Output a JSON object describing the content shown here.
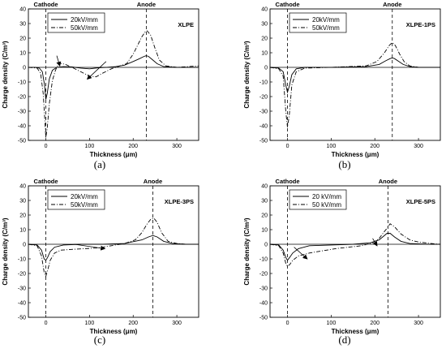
{
  "chart_data": [
    {
      "type": "line",
      "title": "XLPE",
      "subplot_label": "(a)",
      "xlabel": "Thickness (μm)",
      "ylabel": "Charge density (C/m³)",
      "xlim": [
        -40,
        350
      ],
      "ylim": [
        -50,
        40
      ],
      "xticks": [
        0,
        100,
        200,
        300
      ],
      "yticks": [
        -50,
        -40,
        -30,
        -20,
        -10,
        0,
        10,
        20,
        30,
        40
      ],
      "electrodes": [
        {
          "label": "Cathode",
          "x": 0
        },
        {
          "label": "Anode",
          "x": 230
        }
      ],
      "legend_position": "top-left",
      "arrows": [
        {
          "from": [
            25,
            8
          ],
          "to": [
            32,
            1
          ]
        },
        {
          "from": [
            138,
            4
          ],
          "to": [
            95,
            -8
          ]
        }
      ],
      "series": [
        {
          "name": "20kV/mm",
          "style": "solid",
          "x": [
            -40,
            -25,
            -15,
            -8,
            -3,
            0,
            3,
            8,
            15,
            25,
            40,
            60,
            80,
            100,
            120,
            140,
            160,
            180,
            200,
            215,
            225,
            230,
            235,
            245,
            255,
            270,
            300,
            350
          ],
          "y": [
            0,
            0,
            -0.5,
            -3,
            -12,
            -22,
            -18,
            -8,
            -2,
            0,
            0.5,
            0.3,
            -0.5,
            -1,
            -0.3,
            0,
            0.5,
            1.5,
            4,
            6,
            7.5,
            8,
            7.5,
            5,
            2.5,
            0.5,
            0,
            0
          ]
        },
        {
          "name": "50kV/mm",
          "style": "dashdot",
          "x": [
            -40,
            -20,
            -12,
            -6,
            -2,
            0,
            3,
            8,
            15,
            22,
            30,
            45,
            60,
            80,
            100,
            115,
            130,
            150,
            170,
            185,
            200,
            210,
            220,
            228,
            232,
            240,
            250,
            260,
            275,
            300,
            350
          ],
          "y": [
            0,
            -0.5,
            -4,
            -18,
            -38,
            -48,
            -42,
            -25,
            -9,
            -2,
            3,
            2,
            0,
            -3,
            -6,
            -6.5,
            -4,
            -1,
            1,
            2.5,
            9,
            15,
            21,
            24.5,
            25,
            22,
            13,
            5,
            1,
            0,
            1
          ]
        }
      ]
    },
    {
      "type": "line",
      "title": "XLPE-1PS",
      "subplot_label": "(b)",
      "xlabel": "Thickness (μm)",
      "ylabel": "Charge density (C/m³)",
      "xlim": [
        -40,
        350
      ],
      "ylim": [
        -50,
        40
      ],
      "xticks": [
        0,
        100,
        200,
        300
      ],
      "yticks": [
        -50,
        -40,
        -30,
        -20,
        -10,
        0,
        10,
        20,
        30,
        40
      ],
      "electrodes": [
        {
          "label": "Cathode",
          "x": 0
        },
        {
          "label": "Anode",
          "x": 240
        }
      ],
      "legend_position": "top-left",
      "arrows": [],
      "series": [
        {
          "name": "20kV/mm",
          "style": "solid",
          "x": [
            -40,
            -20,
            -10,
            -4,
            0,
            4,
            10,
            20,
            40,
            100,
            180,
            210,
            225,
            235,
            240,
            245,
            255,
            265,
            280,
            300,
            350
          ],
          "y": [
            0,
            -0.5,
            -3,
            -12,
            -17,
            -13,
            -5,
            -1,
            0,
            0,
            0.5,
            2,
            4.5,
            6,
            6.5,
            6,
            4,
            2,
            0.5,
            0,
            0
          ]
        },
        {
          "name": "50kV/mm",
          "style": "dashdot",
          "x": [
            -40,
            -20,
            -10,
            -4,
            0,
            4,
            10,
            20,
            40,
            100,
            180,
            205,
            222,
            233,
            240,
            247,
            257,
            267,
            280,
            300,
            350
          ],
          "y": [
            0,
            -1,
            -6,
            -30,
            -41,
            -33,
            -12,
            -3,
            -0.5,
            0,
            1,
            4,
            10,
            15,
            17,
            15,
            9,
            4,
            1,
            0,
            0
          ]
        }
      ]
    },
    {
      "type": "line",
      "title": "XLPE-3PS",
      "subplot_label": "(c)",
      "xlabel": "Thickness (μm)",
      "ylabel": "Charge density (C/m³)",
      "xlim": [
        -40,
        350
      ],
      "ylim": [
        -50,
        40
      ],
      "xticks": [
        0,
        100,
        200,
        300
      ],
      "yticks": [
        -50,
        -40,
        -30,
        -20,
        -10,
        0,
        10,
        20,
        30,
        40
      ],
      "electrodes": [
        {
          "label": "Cathode",
          "x": 0
        },
        {
          "label": "Anode",
          "x": 245
        }
      ],
      "legend_position": "top-left",
      "arrows": [
        {
          "from": [
            65,
            0
          ],
          "to": [
            135,
            -3
          ]
        }
      ],
      "series": [
        {
          "name": "20kV/mm",
          "style": "solid",
          "x": [
            -40,
            -20,
            -10,
            -4,
            0,
            4,
            10,
            20,
            40,
            80,
            130,
            180,
            220,
            235,
            245,
            255,
            270,
            290,
            320,
            350
          ],
          "y": [
            0,
            -0.5,
            -4,
            -10,
            -11,
            -9,
            -5,
            -2,
            -0.5,
            0,
            0,
            0.5,
            3,
            5,
            6,
            5,
            2,
            0.5,
            0,
            0
          ]
        },
        {
          "name": "50kV/mm",
          "style": "dashdot",
          "x": [
            -40,
            -20,
            -10,
            -4,
            0,
            4,
            10,
            20,
            35,
            60,
            90,
            120,
            150,
            180,
            205,
            220,
            232,
            240,
            247,
            255,
            265,
            280,
            300,
            320,
            350
          ],
          "y": [
            0,
            -1,
            -8,
            -19,
            -22,
            -18,
            -11,
            -6,
            -4,
            -3.5,
            -3,
            -2.5,
            -1,
            0.5,
            3,
            8,
            14,
            17,
            18,
            15,
            8,
            2,
            0.5,
            0,
            0
          ]
        }
      ]
    },
    {
      "type": "line",
      "title": "XLPE-5PS",
      "subplot_label": "(d)",
      "xlabel": "Thickness (μm)",
      "ylabel": "Charge density (C/m³)",
      "xlim": [
        -40,
        350
      ],
      "ylim": [
        -50,
        40
      ],
      "xticks": [
        0,
        100,
        200,
        300
      ],
      "yticks": [
        -50,
        -40,
        -30,
        -20,
        -10,
        0,
        10,
        20,
        30,
        40
      ],
      "electrodes": [
        {
          "label": "Cathode",
          "x": 0
        },
        {
          "label": "Anode",
          "x": 230
        }
      ],
      "legend_position": "top-left",
      "arrows": [
        {
          "from": [
            15,
            -2
          ],
          "to": [
            45,
            -10
          ]
        },
        {
          "from": [
            195,
            4
          ],
          "to": [
            205,
            -1
          ]
        }
      ],
      "series": [
        {
          "name": "20 kV/mm",
          "style": "solid",
          "x": [
            -40,
            -20,
            -10,
            -4,
            0,
            5,
            12,
            25,
            50,
            100,
            150,
            190,
            210,
            220,
            228,
            235,
            245,
            260,
            280,
            320,
            350
          ],
          "y": [
            0,
            -0.5,
            -4,
            -9,
            -11,
            -9,
            -6,
            -3,
            -1,
            -0.5,
            0,
            1,
            3,
            5.5,
            7.5,
            7.5,
            5,
            2,
            0.5,
            0,
            0
          ]
        },
        {
          "name": "50 kV/mm",
          "style": "dashdot",
          "x": [
            -40,
            -20,
            -10,
            -4,
            0,
            5,
            12,
            25,
            50,
            80,
            110,
            140,
            170,
            195,
            210,
            220,
            228,
            235,
            245,
            260,
            280,
            300,
            330,
            350
          ],
          "y": [
            0,
            -1,
            -6,
            -13,
            -15,
            -14,
            -11,
            -8,
            -6,
            -4.5,
            -3,
            -2,
            -1,
            1,
            4,
            8,
            11,
            14,
            12,
            7,
            3,
            1.5,
            0.5,
            0
          ]
        }
      ]
    }
  ]
}
